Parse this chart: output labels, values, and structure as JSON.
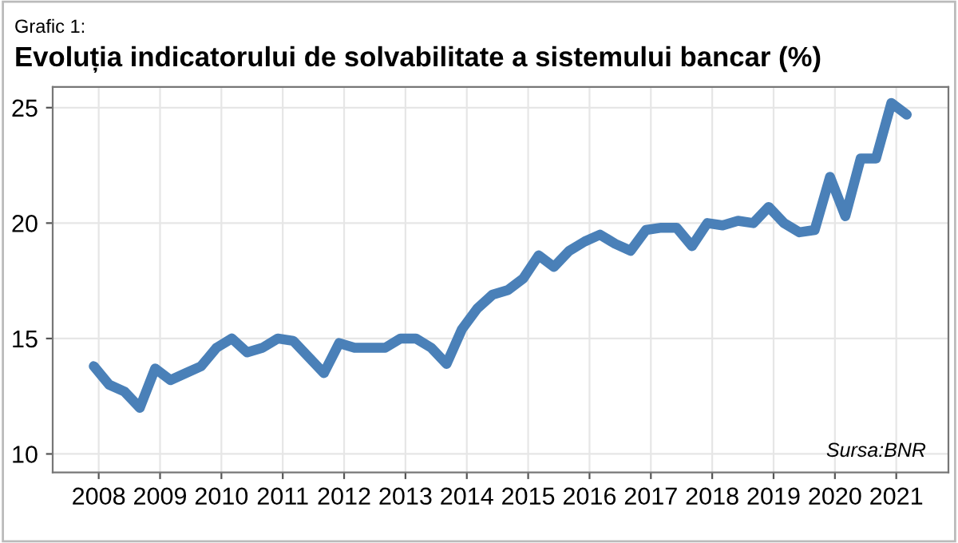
{
  "chart_data": {
    "type": "line",
    "title": "Evoluția indicatorului de solvabilitate a sistemului bancar (%)",
    "annotations": [
      "Grafic 1:",
      "Sursa:BNR"
    ],
    "x": [
      2007.92,
      2008.17,
      2008.42,
      2008.67,
      2008.92,
      2009.17,
      2009.42,
      2009.67,
      2009.92,
      2010.17,
      2010.42,
      2010.67,
      2010.92,
      2011.17,
      2011.42,
      2011.67,
      2011.92,
      2012.17,
      2012.42,
      2012.67,
      2012.92,
      2013.17,
      2013.42,
      2013.67,
      2013.92,
      2014.17,
      2014.42,
      2014.67,
      2014.92,
      2015.17,
      2015.42,
      2015.67,
      2015.92,
      2016.17,
      2016.42,
      2016.67,
      2016.92,
      2017.17,
      2017.42,
      2017.67,
      2017.92,
      2018.17,
      2018.42,
      2018.67,
      2018.92,
      2019.17,
      2019.42,
      2019.67,
      2019.92,
      2020.17,
      2020.42,
      2020.67,
      2020.92,
      2021.17
    ],
    "series": [
      {
        "color": "#4a80b8",
        "values": [
          13.8,
          13.0,
          12.7,
          12.0,
          13.7,
          13.2,
          13.5,
          13.8,
          14.6,
          15.0,
          14.4,
          14.6,
          15.0,
          14.9,
          14.2,
          13.5,
          14.8,
          14.6,
          14.6,
          14.6,
          15.0,
          15.0,
          14.6,
          13.9,
          15.4,
          16.3,
          16.9,
          17.1,
          17.6,
          18.6,
          18.1,
          18.8,
          19.2,
          19.5,
          19.1,
          18.8,
          19.7,
          19.8,
          19.8,
          19.0,
          20.0,
          19.9,
          20.1,
          20.0,
          20.7,
          20.0,
          19.6,
          19.7,
          22.0,
          20.3,
          22.8,
          22.8,
          25.2,
          24.7
        ]
      }
    ],
    "xlim": [
      2007.25,
      2021.85
    ],
    "ylim": [
      9.2,
      25.9
    ],
    "xticks": [
      2008,
      2009,
      2010,
      2011,
      2012,
      2013,
      2014,
      2015,
      2016,
      2017,
      2018,
      2019,
      2020,
      2021
    ],
    "yticks": [
      10,
      15,
      20,
      25
    ],
    "grid": true,
    "legend": false,
    "marker": "none",
    "line_style": "solid"
  }
}
